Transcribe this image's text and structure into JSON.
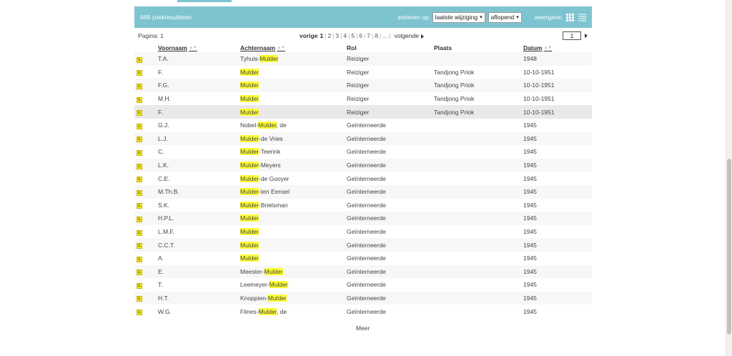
{
  "header": {
    "results_count": "668 zoekresultaten",
    "sort_label": "sorteren op:",
    "sort_field": "laatste wijziging",
    "sort_order": "aflopend",
    "view_label": "weergave:",
    "icons": [
      "grid-view-icon",
      "list-view-icon"
    ],
    "bg_color": "#7ec4d0"
  },
  "pager": {
    "page_label": "Pagina: 1",
    "prev": "vorige",
    "pages": [
      "1",
      "2",
      "3",
      "4",
      "5",
      "6",
      "7",
      "8",
      "..."
    ],
    "current": "1",
    "next": "volgende",
    "page_input": "1"
  },
  "table": {
    "columns": [
      "Voornaam",
      "Achternaam",
      "Rol",
      "Plaats",
      "Datum"
    ],
    "badge": "L",
    "highlight_term": "Mulder",
    "highlight_color": "#ffff33",
    "rows": [
      {
        "voornaam": "T.A.",
        "pre": "Tyhuis-",
        "hl": "Mulder",
        "post": "",
        "rol": "Reiziger",
        "plaats": "",
        "datum": "1948"
      },
      {
        "voornaam": "F.",
        "pre": "",
        "hl": "Mulder",
        "post": "",
        "rol": "Reiziger",
        "plaats": "Tandjong Priok",
        "datum": "10-10-1951"
      },
      {
        "voornaam": "F.G.",
        "pre": "",
        "hl": "Mulder",
        "post": "",
        "rol": "Reiziger",
        "plaats": "Tandjong Priok",
        "datum": "10-10-1951"
      },
      {
        "voornaam": "M.H.",
        "pre": "",
        "hl": "Mulder",
        "post": "",
        "rol": "Reiziger",
        "plaats": "Tandjong Priok",
        "datum": "10-10-1951"
      },
      {
        "voornaam": "F.",
        "pre": "",
        "hl": "Mulder",
        "post": "",
        "rol": "Reiziger",
        "plaats": "Tandjong Priok",
        "datum": "10-10-1951"
      },
      {
        "voornaam": "G.J.",
        "pre": "Nobel-",
        "hl": "Mulder",
        "post": ", de",
        "rol": "Geïnterneerde",
        "plaats": "",
        "datum": "1945"
      },
      {
        "voornaam": "L.J.",
        "pre": "",
        "hl": "Mulder",
        "post": "-de Vries",
        "rol": "Geïnterneerde",
        "plaats": "",
        "datum": "1945"
      },
      {
        "voornaam": "C.",
        "pre": "",
        "hl": "Mulder",
        "post": "-Teerink",
        "rol": "Geïnterneerde",
        "plaats": "",
        "datum": "1945"
      },
      {
        "voornaam": "L.K.",
        "pre": "",
        "hl": "Mulder",
        "post": "-Meyers",
        "rol": "Geïnterneerde",
        "plaats": "",
        "datum": "1945"
      },
      {
        "voornaam": "C.E.",
        "pre": "",
        "hl": "Mulder",
        "post": "-de Gooyer",
        "rol": "Geïnterneerde",
        "plaats": "",
        "datum": "1945"
      },
      {
        "voornaam": "M.Th.B.",
        "pre": "",
        "hl": "Mulder",
        "post": "-ten Eensel",
        "rol": "Geïnterneerde",
        "plaats": "",
        "datum": "1945"
      },
      {
        "voornaam": "S.K.",
        "pre": "",
        "hl": "Mulder",
        "post": "-Brielsman",
        "rol": "Geïnterneerde",
        "plaats": "",
        "datum": "1945"
      },
      {
        "voornaam": "H.P.L.",
        "pre": "",
        "hl": "Mulder",
        "post": "",
        "rol": "Geïnterneerde",
        "plaats": "",
        "datum": "1945"
      },
      {
        "voornaam": "L.M.F.",
        "pre": "",
        "hl": "Mulder",
        "post": "",
        "rol": "Geïnterneerde",
        "plaats": "",
        "datum": "1945"
      },
      {
        "voornaam": "C.C.T.",
        "pre": "",
        "hl": "Mulder",
        "post": "",
        "rol": "Geïnterneerde",
        "plaats": "",
        "datum": "1945"
      },
      {
        "voornaam": "A.",
        "pre": "",
        "hl": "Mulder",
        "post": "",
        "rol": "Geïnterneerde",
        "plaats": "",
        "datum": "1945"
      },
      {
        "voornaam": "E.",
        "pre": "Meester-",
        "hl": "Mulder",
        "post": "",
        "rol": "Geïnterneerde",
        "plaats": "",
        "datum": "1945"
      },
      {
        "voornaam": "T.",
        "pre": "Leemeyer-",
        "hl": "Mulder",
        "post": "",
        "rol": "Geïnterneerde",
        "plaats": "",
        "datum": "1945"
      },
      {
        "voornaam": "H.T.",
        "pre": "Knoppien-",
        "hl": "Mulder",
        "post": "",
        "rol": "Geïnterneerde",
        "plaats": "",
        "datum": "1945"
      },
      {
        "voornaam": "W.G.",
        "pre": "Flines-",
        "hl": "Mulder",
        "post": ", de",
        "rol": "Geïnterneerde",
        "plaats": "",
        "datum": "1945"
      }
    ]
  },
  "footer": {
    "more_label": "Meer"
  }
}
